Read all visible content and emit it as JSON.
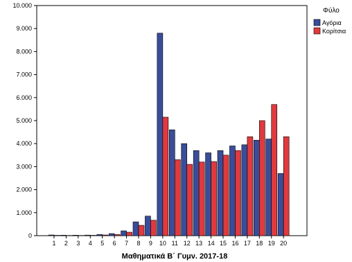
{
  "chart_data": {
    "type": "bar",
    "title": "",
    "xlabel": "Μαθηματικά Β΄ Γυμν. 2017-18",
    "ylabel": "",
    "ylim": [
      0,
      10000
    ],
    "yticks": [
      0,
      1000,
      2000,
      3000,
      4000,
      5000,
      6000,
      7000,
      8000,
      9000,
      10000
    ],
    "ytick_labels": [
      "0",
      "1.000",
      "2.000",
      "3.000",
      "4.000",
      "5.000",
      "6.000",
      "7.000",
      "8.000",
      "9.000",
      "10.000"
    ],
    "grid": false,
    "legend": {
      "title": "Φύλο",
      "placement": "right"
    },
    "categories": [
      "1",
      "2",
      "3",
      "4",
      "5",
      "6",
      "7",
      "8",
      "9",
      "10",
      "11",
      "12",
      "13",
      "14",
      "15",
      "16",
      "17",
      "18",
      "19",
      "20"
    ],
    "series": [
      {
        "name": "Αγόρια",
        "color": "#3a4d9a",
        "values": [
          30,
          20,
          20,
          25,
          50,
          90,
          210,
          600,
          850,
          8800,
          4600,
          4000,
          3700,
          3600,
          3700,
          3900,
          3950,
          4150,
          4200,
          2700
        ]
      },
      {
        "name": "Κορίτσια",
        "color": "#e03a3e",
        "values": [
          15,
          10,
          10,
          15,
          30,
          50,
          150,
          450,
          670,
          5150,
          3300,
          3100,
          3200,
          3220,
          3500,
          3700,
          4300,
          5000,
          5700,
          4300
        ]
      }
    ]
  }
}
